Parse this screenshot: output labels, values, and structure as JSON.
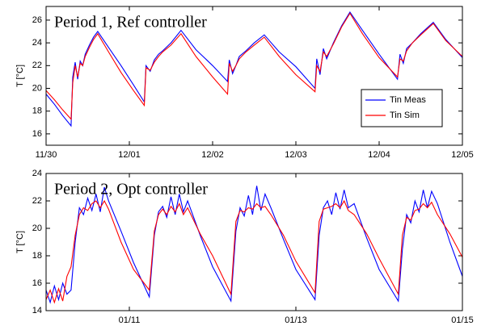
{
  "chart_data": [
    {
      "type": "line",
      "annotation": "Period 1, Ref controller",
      "ylabel": "T [°C]",
      "legend": "lower right",
      "grid": false,
      "xlim": [
        0,
        5
      ],
      "ylim": [
        15,
        27.2
      ],
      "xticks": [
        {
          "value": 0,
          "label": "11/30"
        },
        {
          "value": 1,
          "label": "12/01"
        },
        {
          "value": 2,
          "label": "12/02"
        },
        {
          "value": 3,
          "label": "12/03"
        },
        {
          "value": 4,
          "label": "12/04"
        },
        {
          "value": 5,
          "label": "12/05"
        }
      ],
      "yticks": [
        16,
        18,
        20,
        22,
        24,
        26
      ],
      "x": [
        0,
        0.1,
        0.2,
        0.3,
        0.32,
        0.35,
        0.38,
        0.41,
        0.44,
        0.47,
        0.52,
        0.57,
        0.62,
        0.75,
        0.9,
        1.05,
        1.18,
        1.2,
        1.25,
        1.3,
        1.35,
        1.4,
        1.5,
        1.62,
        1.8,
        2.0,
        2.18,
        2.2,
        2.24,
        2.28,
        2.32,
        2.4,
        2.5,
        2.62,
        2.8,
        3.0,
        3.23,
        3.25,
        3.29,
        3.33,
        3.37,
        3.45,
        3.55,
        3.65,
        3.8,
        4.0,
        4.22,
        4.25,
        4.29,
        4.33,
        4.4,
        4.5,
        4.65,
        4.8,
        5.0
      ],
      "series": [
        {
          "name": "Tin Meas",
          "color": "#0000ff",
          "values": [
            19.5,
            18.6,
            17.6,
            16.7,
            21.0,
            22.3,
            20.8,
            22.4,
            22.0,
            23.0,
            23.8,
            24.5,
            25.0,
            23.6,
            22.0,
            20.3,
            18.8,
            22.0,
            21.5,
            22.5,
            23.0,
            23.3,
            24.0,
            25.1,
            23.4,
            22.0,
            20.6,
            22.5,
            21.3,
            22.0,
            22.8,
            23.3,
            24.0,
            24.7,
            23.2,
            21.9,
            20.0,
            22.6,
            21.2,
            23.5,
            22.6,
            24.0,
            25.5,
            26.7,
            25.1,
            23.0,
            20.8,
            23.0,
            22.2,
            23.5,
            24.0,
            24.8,
            25.8,
            24.3,
            22.7
          ]
        },
        {
          "name": "Tin Sim",
          "color": "#ff0000",
          "values": [
            19.8,
            19.0,
            18.1,
            17.3,
            20.5,
            22.0,
            21.0,
            22.2,
            22.0,
            22.8,
            23.6,
            24.3,
            24.8,
            23.2,
            21.4,
            19.8,
            18.5,
            21.8,
            21.6,
            22.3,
            22.8,
            23.2,
            23.8,
            24.8,
            22.8,
            21.0,
            19.5,
            22.2,
            21.5,
            22.0,
            22.6,
            23.2,
            23.8,
            24.5,
            22.8,
            21.2,
            19.7,
            22.0,
            21.5,
            23.2,
            22.8,
            23.9,
            25.4,
            26.6,
            24.8,
            22.7,
            21.0,
            22.6,
            22.4,
            23.3,
            24.0,
            24.7,
            25.7,
            24.2,
            22.8
          ]
        }
      ]
    },
    {
      "type": "line",
      "annotation": "Period 2, Opt controller",
      "ylabel": "T [°C]",
      "grid": false,
      "xlim": [
        0,
        5
      ],
      "ylim": [
        14,
        24
      ],
      "xticks": [
        {
          "value": 1,
          "label": "01/11"
        },
        {
          "value": 3,
          "label": "01/13"
        },
        {
          "value": 5,
          "label": "01/15"
        }
      ],
      "yticks": [
        14,
        16,
        18,
        20,
        22,
        24
      ],
      "x": [
        0,
        0.05,
        0.1,
        0.15,
        0.2,
        0.25,
        0.3,
        0.35,
        0.4,
        0.45,
        0.5,
        0.55,
        0.6,
        0.65,
        0.7,
        0.75,
        0.9,
        1.05,
        1.24,
        1.3,
        1.35,
        1.4,
        1.45,
        1.5,
        1.55,
        1.6,
        1.65,
        1.7,
        1.85,
        2.0,
        2.22,
        2.28,
        2.33,
        2.38,
        2.43,
        2.48,
        2.53,
        2.58,
        2.63,
        2.7,
        2.85,
        3.0,
        3.23,
        3.28,
        3.33,
        3.38,
        3.43,
        3.48,
        3.53,
        3.58,
        3.63,
        3.7,
        3.85,
        4.0,
        4.23,
        4.28,
        4.33,
        4.38,
        4.43,
        4.48,
        4.53,
        4.58,
        4.63,
        4.7,
        4.85,
        5.0
      ],
      "series": [
        {
          "name": "Tin Meas",
          "color": "#0000ff",
          "values": [
            15.5,
            14.6,
            15.8,
            14.8,
            16.0,
            15.2,
            15.5,
            19.0,
            21.5,
            21.0,
            22.2,
            21.3,
            22.5,
            21.2,
            23.0,
            22.0,
            19.8,
            17.5,
            15.0,
            19.5,
            21.2,
            21.6,
            20.8,
            22.3,
            21.0,
            22.5,
            21.2,
            22.0,
            19.5,
            17.2,
            14.7,
            19.8,
            21.5,
            20.9,
            22.4,
            21.0,
            23.1,
            21.3,
            22.5,
            21.5,
            19.2,
            17.0,
            14.8,
            19.5,
            21.5,
            22.0,
            21.0,
            22.6,
            21.4,
            22.8,
            21.5,
            21.8,
            19.3,
            17.0,
            14.7,
            18.5,
            21.0,
            20.4,
            22.0,
            21.2,
            22.8,
            21.5,
            22.7,
            21.8,
            19.0,
            16.5
          ]
        },
        {
          "name": "Tin Sim",
          "color": "#ff0000",
          "values": [
            14.8,
            15.5,
            14.6,
            15.6,
            14.7,
            16.5,
            17.2,
            19.5,
            21.0,
            21.5,
            21.3,
            21.8,
            22.0,
            21.5,
            22.0,
            21.4,
            19.0,
            17.0,
            15.5,
            19.8,
            21.0,
            21.4,
            21.0,
            21.6,
            21.2,
            21.8,
            21.0,
            21.5,
            19.6,
            18.0,
            15.2,
            20.5,
            21.3,
            21.2,
            21.5,
            21.4,
            21.8,
            21.5,
            21.6,
            21.0,
            19.5,
            17.6,
            15.3,
            20.5,
            21.4,
            21.5,
            21.6,
            21.8,
            21.5,
            22.0,
            21.3,
            21.0,
            19.6,
            17.8,
            15.2,
            19.5,
            20.8,
            20.6,
            21.3,
            21.4,
            21.8,
            21.5,
            21.9,
            21.0,
            19.6,
            17.9
          ]
        }
      ]
    }
  ]
}
